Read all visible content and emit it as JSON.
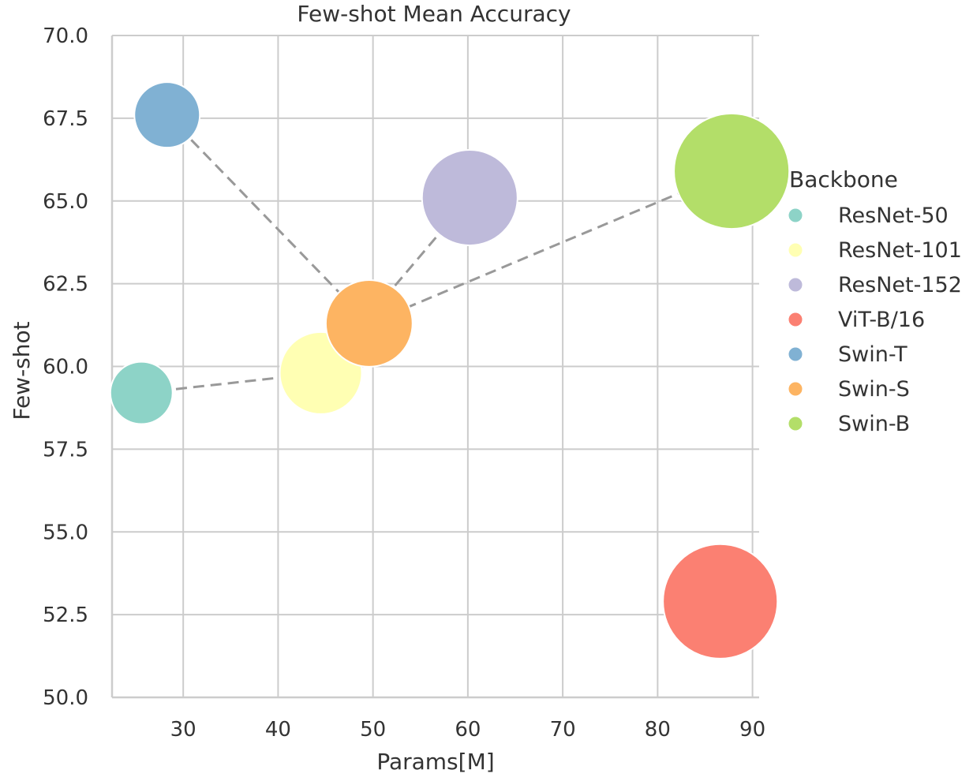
{
  "chart_data": {
    "type": "scatter",
    "title": "Few-shot Mean Accuracy",
    "xlabel": "Params[M]",
    "ylabel": "Few-shot",
    "xlim": [
      22.5,
      90.7
    ],
    "ylim": [
      50.0,
      70.0
    ],
    "xticks": [
      30,
      40,
      50,
      60,
      70,
      80,
      90
    ],
    "yticks": [
      50.0,
      52.5,
      55.0,
      57.5,
      60.0,
      62.5,
      65.0,
      67.5,
      70.0
    ],
    "grid": true,
    "legend": {
      "title": "Backbone",
      "placement": "right"
    },
    "size_encoding": "Params[M]",
    "series": [
      {
        "name": "ResNet-50",
        "x": 25.6,
        "y": 59.2,
        "color": "#8dd3c7"
      },
      {
        "name": "ResNet-101",
        "x": 44.5,
        "y": 59.8,
        "color": "#ffffb3"
      },
      {
        "name": "ResNet-152",
        "x": 60.2,
        "y": 65.1,
        "color": "#bebada"
      },
      {
        "name": "ViT-B/16",
        "x": 86.6,
        "y": 52.9,
        "color": "#fb8072"
      },
      {
        "name": "Swin-T",
        "x": 28.3,
        "y": 67.6,
        "color": "#80b1d3"
      },
      {
        "name": "Swin-S",
        "x": 49.6,
        "y": 61.3,
        "color": "#fdb462"
      },
      {
        "name": "Swin-B",
        "x": 87.8,
        "y": 65.9,
        "color": "#b3de69"
      }
    ],
    "connections": [
      [
        "ResNet-50",
        "ResNet-101",
        "ResNet-152"
      ],
      [
        "Swin-T",
        "Swin-S",
        "Swin-B"
      ]
    ],
    "line_color": "#999999",
    "grid_color": "#cccccc",
    "text_color": "#333333"
  }
}
